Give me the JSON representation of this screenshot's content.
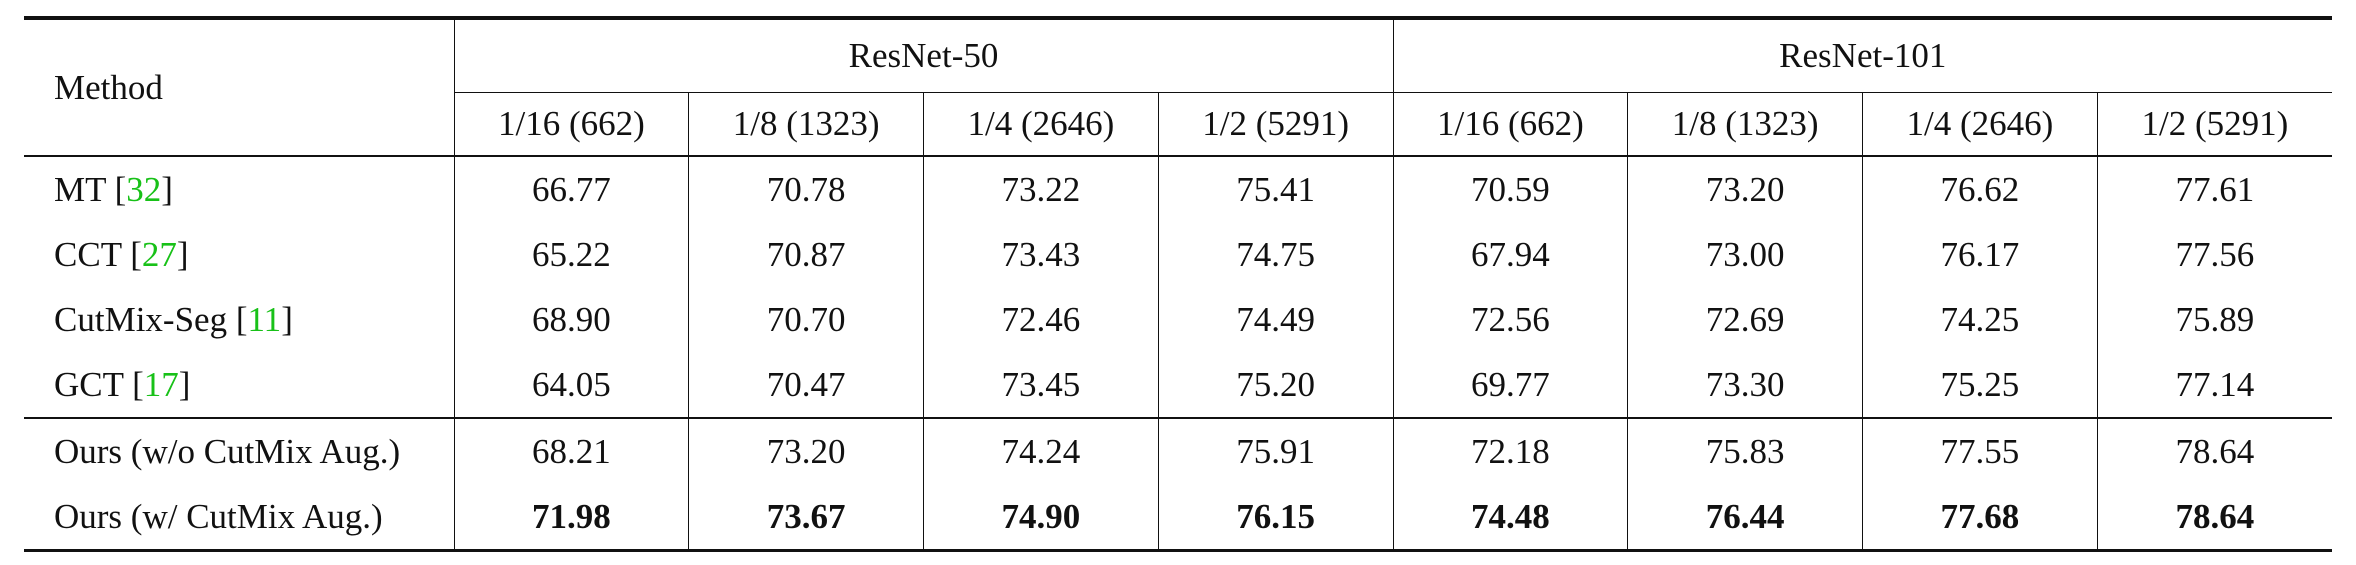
{
  "table": {
    "method_header": "Method",
    "groups": [
      "ResNet-50",
      "ResNet-101"
    ],
    "splits": [
      "1/16 (662)",
      "1/8 (1323)",
      "1/4 (2646)",
      "1/2 (5291)",
      "1/16 (662)",
      "1/8 (1323)",
      "1/4 (2646)",
      "1/2 (5291)"
    ],
    "rows": [
      {
        "name": "MT ",
        "cite": "32",
        "suffix": "]",
        "values": [
          "66.77",
          "70.78",
          "73.22",
          "75.41",
          "70.59",
          "73.20",
          "76.62",
          "77.61"
        ]
      },
      {
        "name": "CCT ",
        "cite": "27",
        "suffix": "]",
        "values": [
          "65.22",
          "70.87",
          "73.43",
          "74.75",
          "67.94",
          "73.00",
          "76.17",
          "77.56"
        ]
      },
      {
        "name": "CutMix-Seg ",
        "cite": "11",
        "suffix": "]",
        "values": [
          "68.90",
          "70.70",
          "72.46",
          "74.49",
          "72.56",
          "72.69",
          "74.25",
          "75.89"
        ]
      },
      {
        "name": "GCT ",
        "cite": "17",
        "suffix": "]",
        "values": [
          "64.05",
          "70.47",
          "73.45",
          "75.20",
          "69.77",
          "73.30",
          "75.25",
          "77.14"
        ]
      },
      {
        "name": "Ours (w/o CutMix Aug.)",
        "cite": "",
        "suffix": "",
        "values": [
          "68.21",
          "73.20",
          "74.24",
          "75.91",
          "72.18",
          "75.83",
          "77.55",
          "78.64"
        ]
      },
      {
        "name": "Ours (w/ CutMix Aug.)",
        "cite": "",
        "suffix": "",
        "values": [
          "71.98",
          "73.67",
          "74.90",
          "76.15",
          "74.48",
          "76.44",
          "77.68",
          "78.64"
        ]
      }
    ]
  }
}
